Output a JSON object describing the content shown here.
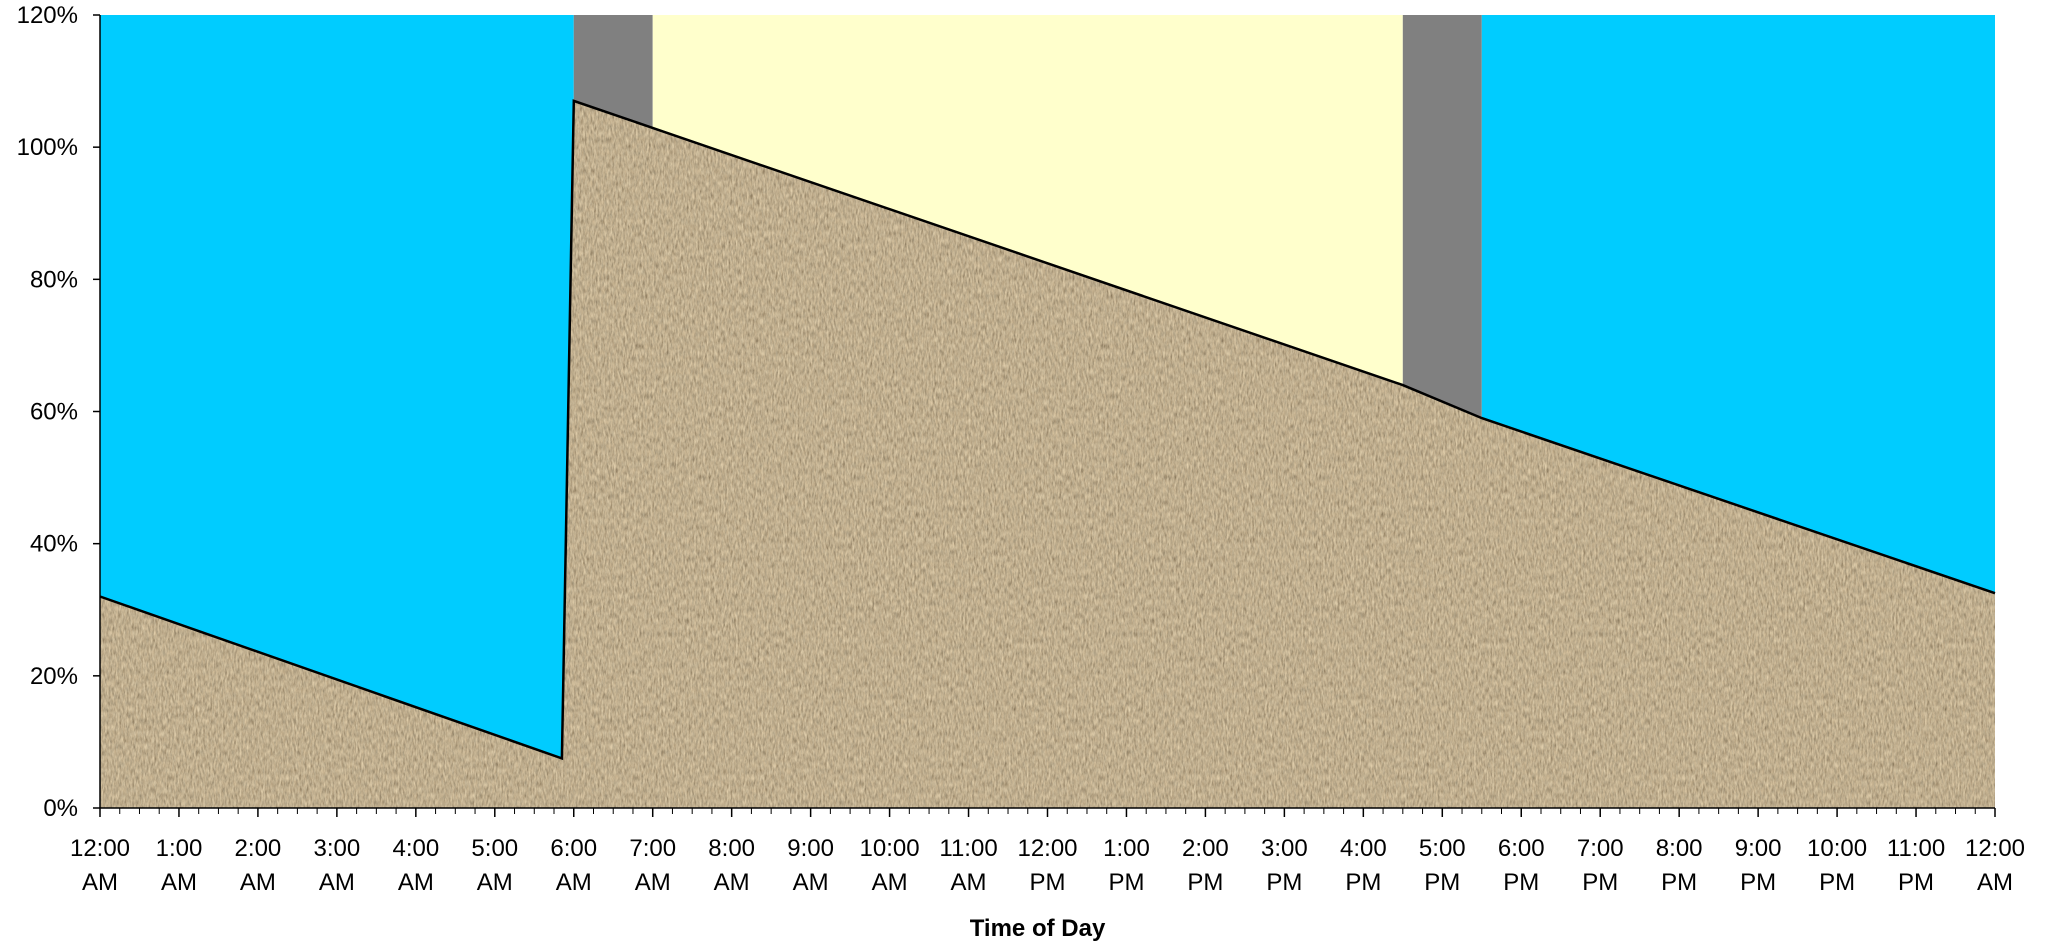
{
  "chart_data": {
    "type": "area",
    "title": "",
    "xlabel": "Time of Day",
    "ylabel": "",
    "ylim": [
      0,
      1.2
    ],
    "yticks": [
      {
        "value": 0,
        "label": "0%"
      },
      {
        "value": 0.2,
        "label": "20%"
      },
      {
        "value": 0.4,
        "label": "40%"
      },
      {
        "value": 0.6,
        "label": "60%"
      },
      {
        "value": 0.8,
        "label": "80%"
      },
      {
        "value": 1.0,
        "label": "100%"
      },
      {
        "value": 1.2,
        "label": "120%"
      }
    ],
    "xlim_hours": [
      0,
      24
    ],
    "xticks": [
      {
        "hour": 0,
        "line1": "12:00",
        "line2": "AM"
      },
      {
        "hour": 1,
        "line1": "1:00",
        "line2": "AM"
      },
      {
        "hour": 2,
        "line1": "2:00",
        "line2": "AM"
      },
      {
        "hour": 3,
        "line1": "3:00",
        "line2": "AM"
      },
      {
        "hour": 4,
        "line1": "4:00",
        "line2": "AM"
      },
      {
        "hour": 5,
        "line1": "5:00",
        "line2": "AM"
      },
      {
        "hour": 6,
        "line1": "6:00",
        "line2": "AM"
      },
      {
        "hour": 7,
        "line1": "7:00",
        "line2": "AM"
      },
      {
        "hour": 8,
        "line1": "8:00",
        "line2": "AM"
      },
      {
        "hour": 9,
        "line1": "9:00",
        "line2": "AM"
      },
      {
        "hour": 10,
        "line1": "10:00",
        "line2": "AM"
      },
      {
        "hour": 11,
        "line1": "11:00",
        "line2": "AM"
      },
      {
        "hour": 12,
        "line1": "12:00",
        "line2": "PM"
      },
      {
        "hour": 13,
        "line1": "1:00",
        "line2": "PM"
      },
      {
        "hour": 14,
        "line1": "2:00",
        "line2": "PM"
      },
      {
        "hour": 15,
        "line1": "3:00",
        "line2": "PM"
      },
      {
        "hour": 16,
        "line1": "4:00",
        "line2": "PM"
      },
      {
        "hour": 17,
        "line1": "5:00",
        "line2": "PM"
      },
      {
        "hour": 18,
        "line1": "6:00",
        "line2": "PM"
      },
      {
        "hour": 19,
        "line1": "7:00",
        "line2": "PM"
      },
      {
        "hour": 20,
        "line1": "8:00",
        "line2": "PM"
      },
      {
        "hour": 21,
        "line1": "9:00",
        "line2": "PM"
      },
      {
        "hour": 22,
        "line1": "10:00",
        "line2": "PM"
      },
      {
        "hour": 23,
        "line1": "11:00",
        "line2": "PM"
      },
      {
        "hour": 24,
        "line1": "12:00",
        "line2": "AM"
      }
    ],
    "minor_ticks_per_hour": 4,
    "background_bands": [
      {
        "start_hour": 0,
        "end_hour": 6,
        "color": "#00CCFF"
      },
      {
        "start_hour": 6,
        "end_hour": 7,
        "color": "#808080"
      },
      {
        "start_hour": 7,
        "end_hour": 16.5,
        "color": "#FFFFCC"
      },
      {
        "start_hour": 16.5,
        "end_hour": 17.5,
        "color": "#808080"
      },
      {
        "start_hour": 17.5,
        "end_hour": 24,
        "color": "#00CCFF"
      }
    ],
    "series": [
      {
        "fill": "brown-textured",
        "points": [
          {
            "x": 0,
            "y": 0.32
          },
          {
            "x": 5.85,
            "y": 0.075
          },
          {
            "x": 6.0,
            "y": 1.07
          },
          {
            "x": 16.5,
            "y": 0.64
          },
          {
            "x": 17.5,
            "y": 0.59
          },
          {
            "x": 24,
            "y": 0.325
          }
        ]
      }
    ],
    "grid": false,
    "legend": "none"
  },
  "colors": {
    "night": "#00CCFF",
    "twilight": "#808080",
    "day": "#FFFFCC",
    "area_base": "#5e4a35"
  }
}
